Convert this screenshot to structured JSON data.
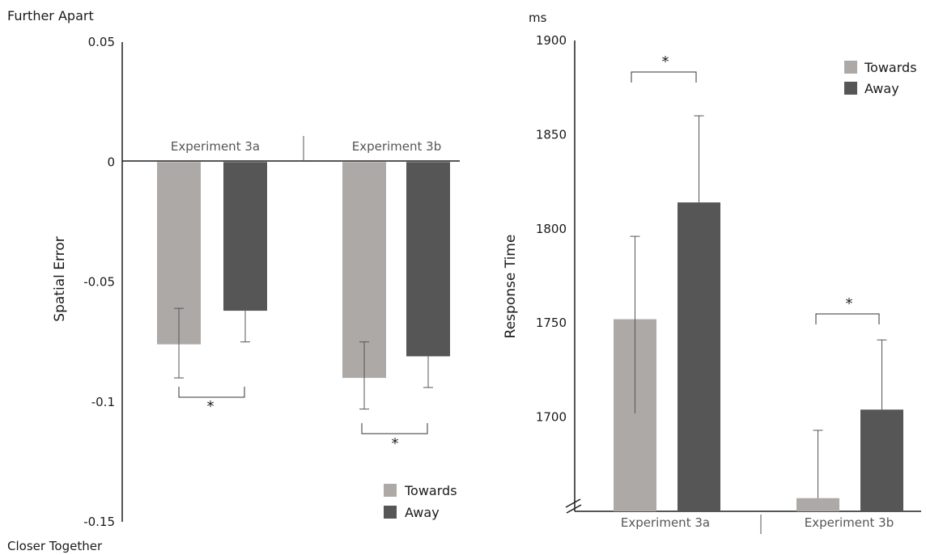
{
  "colors": {
    "towards": "#ada9a7",
    "away": "#565656",
    "axis": "#1e1e1e",
    "text": "#1a1a1a",
    "label_text": "#555555"
  },
  "chart_data": [
    {
      "type": "bar",
      "panel": "left",
      "top_label": "Further Apart",
      "bottom_label": "Closer Together",
      "xlabel": "",
      "ylabel": "Spatial Error",
      "ylim": [
        -0.15,
        0.05
      ],
      "yticks": [
        "0.05",
        "0",
        "-0.05",
        "-0.1",
        "-0.15"
      ],
      "ytick_values": [
        0.05,
        0,
        -0.05,
        -0.1,
        -0.15
      ],
      "categories": [
        "Experiment 3a",
        "Experiment 3b"
      ],
      "series": [
        {
          "name": "Towards",
          "values": [
            -0.076,
            -0.09
          ],
          "error_low": [
            -0.09,
            -0.103
          ],
          "error_high": [
            -0.061,
            -0.075
          ]
        },
        {
          "name": "Away",
          "values": [
            -0.062,
            -0.081
          ],
          "error_low": [
            -0.075,
            -0.094
          ],
          "error_high": [
            -0.062,
            -0.081
          ]
        }
      ],
      "significance": [
        "*",
        "*"
      ],
      "legend": {
        "position": "bottom-right",
        "entries": [
          "Towards",
          "Away"
        ]
      }
    },
    {
      "type": "bar",
      "panel": "right",
      "unit_label": "ms",
      "xlabel": "",
      "ylabel": "Response Time",
      "ylim": [
        1650,
        1900
      ],
      "axis_break": true,
      "yticks": [
        "1900",
        "1850",
        "1800",
        "1750",
        "1700"
      ],
      "ytick_values": [
        1900,
        1850,
        1800,
        1750,
        1700
      ],
      "categories": [
        "Experiment 3a",
        "Experiment 3b"
      ],
      "series": [
        {
          "name": "Towards",
          "values": [
            1752,
            1657
          ],
          "error_low": [
            1702,
            1657
          ],
          "error_high": [
            1796,
            1693
          ]
        },
        {
          "name": "Away",
          "values": [
            1814,
            1704
          ],
          "error_low": [
            1814,
            1704
          ],
          "error_high": [
            1860,
            1741
          ]
        }
      ],
      "significance": [
        "*",
        "*"
      ],
      "legend": {
        "position": "top-right",
        "entries": [
          "Towards",
          "Away"
        ]
      }
    }
  ]
}
